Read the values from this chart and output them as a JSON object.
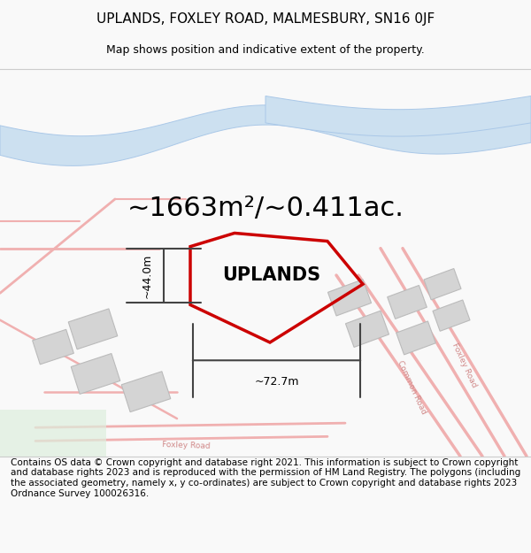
{
  "title": "UPLANDS, FOXLEY ROAD, MALMESBURY, SN16 0JF",
  "subtitle": "Map shows position and indicative extent of the property.",
  "area_text": "~1663m²/~0.411ac.",
  "property_label": "UPLANDS",
  "dim_width": "~72.7m",
  "dim_height": "~44.0m",
  "footer": "Contains OS data © Crown copyright and database right 2021. This information is subject to Crown copyright and database rights 2023 and is reproduced with the permission of HM Land Registry. The polygons (including the associated geometry, namely x, y co-ordinates) are subject to Crown copyright and database rights 2023 Ordnance Survey 100026316.",
  "bg_color": "#f9f9f9",
  "map_bg": "#ffffff",
  "river_color": "#cce0f0",
  "river_border": "#aac8e8",
  "road_color": "#f0b0b0",
  "road_color2": "#f5c8c8",
  "plot_color": "#cc0000",
  "building_color": "#d4d4d4",
  "building_edge": "#bbbbbb",
  "road_text_color": "#d08888",
  "green_color": "#ddeedd",
  "annotation_color": "#444444",
  "title_fontsize": 11,
  "subtitle_fontsize": 9,
  "area_fontsize": 22,
  "label_fontsize": 15,
  "footer_fontsize": 7.5
}
